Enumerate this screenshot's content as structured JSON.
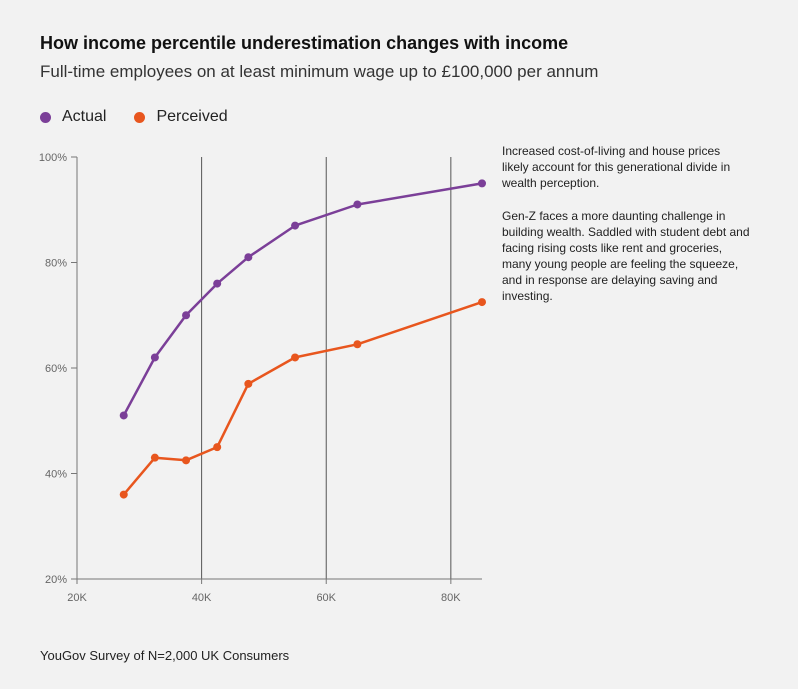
{
  "title": "How income percentile underestimation changes with income",
  "subtitle": "Full-time employees on at least minimum wage up to £100,000 per annum",
  "notes": [
    "Increased cost-of-living and house prices likely account for this generational divide in wealth perception.",
    "Gen-Z faces a more daunting challenge in building wealth. Saddled with student debt and facing rising costs like rent and groceries, many young people are feeling the squeeze, and in response are delaying saving and investing."
  ],
  "source": "YouGov Survey of N=2,000 UK Consumers",
  "chart_data": {
    "type": "line",
    "title": "How income percentile underestimation changes with income",
    "subtitle": "Full-time employees on at least minimum wage up to £100,000 per annum",
    "xlabel": "",
    "ylabel": "",
    "xlim": [
      20000,
      85000
    ],
    "ylim": [
      20,
      100
    ],
    "x_ticks": [
      20000,
      40000,
      60000,
      80000
    ],
    "x_tick_labels": [
      "20K",
      "40K",
      "60K",
      "80K"
    ],
    "y_ticks": [
      20,
      40,
      60,
      80,
      100
    ],
    "y_tick_labels": [
      "20%",
      "40%",
      "60%",
      "80%",
      "100%"
    ],
    "grid": "vertical",
    "legend": "top-left",
    "series": [
      {
        "name": "Actual",
        "color": "#7b3f98",
        "points": [
          [
            27500,
            51
          ],
          [
            32500,
            62
          ],
          [
            37500,
            70
          ],
          [
            42500,
            76
          ],
          [
            47500,
            81
          ],
          [
            55000,
            87
          ],
          [
            65000,
            91
          ],
          [
            85000,
            95
          ]
        ]
      },
      {
        "name": "Perceived",
        "color": "#e8561e",
        "points": [
          [
            27500,
            36
          ],
          [
            32500,
            43
          ],
          [
            37500,
            42.5
          ],
          [
            42500,
            45
          ],
          [
            47500,
            57
          ],
          [
            55000,
            62
          ],
          [
            65000,
            64.5
          ],
          [
            85000,
            72.5
          ]
        ]
      }
    ]
  }
}
